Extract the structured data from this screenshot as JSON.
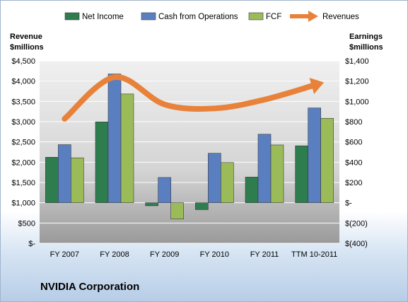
{
  "chart_data": {
    "type": "bar",
    "company": "NVIDIA Corporation",
    "categories": [
      "FY 2007",
      "FY 2008",
      "FY 2009",
      "FY 2010",
      "FY 2011",
      "TTM 10-2011"
    ],
    "left_axis": {
      "title_line1": "Revenue",
      "title_line2": "$millions",
      "ylim": [
        0,
        4500
      ],
      "ticks": [
        0,
        500,
        1000,
        1500,
        2000,
        2500,
        3000,
        3500,
        4000,
        4500
      ],
      "tick_labels": [
        "$-",
        "$500",
        "$1,000",
        "$1,500",
        "$2,000",
        "$2,500",
        "$3,000",
        "$3,500",
        "$4,000",
        "$4,500"
      ]
    },
    "right_axis": {
      "title_line1": "Earnings",
      "title_line2": "$millions",
      "ylim": [
        -400,
        1400
      ],
      "ticks": [
        -400,
        -200,
        0,
        200,
        400,
        600,
        800,
        1000,
        1200,
        1400
      ],
      "tick_labels": [
        "$(400)",
        "$(200)",
        "$-",
        "$200",
        "$400",
        "$600",
        "$800",
        "$1,000",
        "$1,200",
        "$1,400"
      ]
    },
    "series": [
      {
        "name": "Net Income",
        "axis": "right",
        "color": "#2e7d4f",
        "values": [
          449,
          798,
          -30,
          -68,
          253,
          562
        ]
      },
      {
        "name": "Cash from Operations",
        "axis": "right",
        "color": "#5a7fc0",
        "values": [
          573,
          1270,
          249,
          488,
          676,
          935
        ]
      },
      {
        "name": "FCF",
        "axis": "right",
        "color": "#9bbb59",
        "values": [
          443,
          1073,
          -160,
          397,
          570,
          833
        ]
      },
      {
        "name": "Revenues",
        "axis": "left",
        "color": "#e8823a",
        "values": [
          3069,
          4098,
          3425,
          3326,
          3543,
          3900
        ]
      }
    ],
    "legend_position": "top",
    "grid": true
  }
}
